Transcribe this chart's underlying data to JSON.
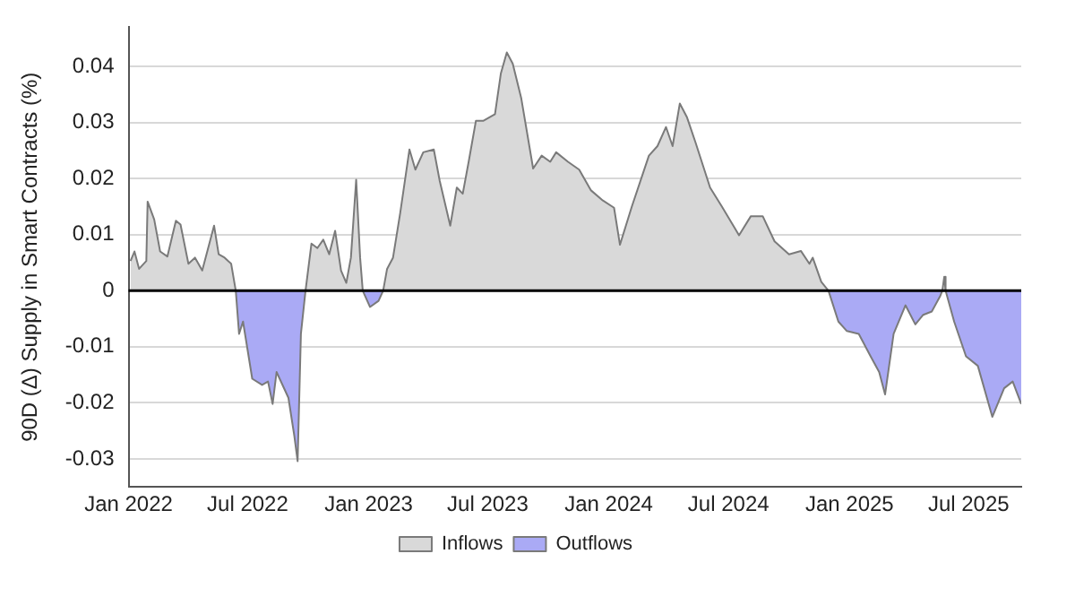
{
  "chart_data": {
    "type": "area",
    "ylabel": "90D (Δ) Supply in Smart Contracts (%)",
    "xlim": [
      "2022-01-01",
      "2025-09-19"
    ],
    "xticks": [
      {
        "value": "2022-01",
        "label": "Jan 2022"
      },
      {
        "value": "2022-07",
        "label": "Jul 2022"
      },
      {
        "value": "2023-01",
        "label": "Jan 2023"
      },
      {
        "value": "2023-07",
        "label": "Jul 2023"
      },
      {
        "value": "2024-01",
        "label": "Jan 2024"
      },
      {
        "value": "2024-07",
        "label": "Jul 2024"
      },
      {
        "value": "2025-01",
        "label": "Jan 2025"
      },
      {
        "value": "2025-07",
        "label": "Jul 2025"
      }
    ],
    "ylim": [
      -0.035,
      0.047
    ],
    "yticks": [
      -0.03,
      -0.02,
      -0.01,
      0,
      0.01,
      0.02,
      0.03,
      0.04
    ],
    "grid": "y",
    "legend": "bottom",
    "ref_lines": [
      {
        "axis": "y",
        "value": 0,
        "color": "#000000"
      }
    ],
    "series": [
      {
        "name": "Inflows",
        "color": "#d9d9d9",
        "x": [
          "2022-01-04",
          "2022-01-10",
          "2022-01-17",
          "2022-01-28",
          "2022-01-30",
          "2022-02-09",
          "2022-02-18",
          "2022-03-01",
          "2022-03-14",
          "2022-03-21",
          "2022-04-02",
          "2022-04-12",
          "2022-04-23",
          "2022-05-11",
          "2022-05-18",
          "2022-05-27",
          "2022-06-06",
          "2022-06-13",
          "2022-09-27",
          "2022-10-06",
          "2022-10-15",
          "2022-10-24",
          "2022-11-02",
          "2022-11-11",
          "2022-11-20",
          "2022-11-28",
          "2022-12-05",
          "2022-12-13",
          "2022-12-19",
          "2022-12-23",
          "2023-01-23",
          "2023-01-29",
          "2023-02-07",
          "2023-02-18",
          "2023-03-04",
          "2023-03-13",
          "2023-03-25",
          "2023-04-10",
          "2023-04-19",
          "2023-05-05",
          "2023-05-15",
          "2023-05-24",
          "2023-06-02",
          "2023-06-13",
          "2023-06-24",
          "2023-07-12",
          "2023-07-21",
          "2023-07-30",
          "2023-08-08",
          "2023-08-21",
          "2023-09-08",
          "2023-09-21",
          "2023-10-04",
          "2023-10-13",
          "2023-10-31",
          "2023-11-17",
          "2023-12-05",
          "2023-12-23",
          "2024-01-09",
          "2024-01-18",
          "2024-02-05",
          "2024-03-02",
          "2024-03-15",
          "2024-03-28",
          "2024-04-07",
          "2024-04-18",
          "2024-04-29",
          "2024-05-12",
          "2024-06-03",
          "2024-06-21",
          "2024-07-17",
          "2024-08-04",
          "2024-08-22",
          "2024-09-09",
          "2024-10-01",
          "2024-10-19",
          "2024-11-01",
          "2024-11-06",
          "2024-11-19",
          "2024-11-30",
          "2025-05-22",
          "2025-05-25",
          "2025-05-27"
        ],
        "values": [
          0.0053,
          0.007,
          0.0039,
          0.0053,
          0.0159,
          0.0127,
          0.007,
          0.0061,
          0.0125,
          0.0118,
          0.0048,
          0.0059,
          0.0036,
          0.0116,
          0.0065,
          0.0059,
          0.0048,
          0,
          0,
          0.0084,
          0.0076,
          0.0091,
          0.0065,
          0.0107,
          0.0036,
          0.0014,
          0.0059,
          0.0198,
          0.0059,
          0,
          0,
          0.0039,
          0.0059,
          0.0139,
          0.0252,
          0.0216,
          0.0247,
          0.0252,
          0.0196,
          0.0116,
          0.0184,
          0.0173,
          0.023,
          0.0303,
          0.0303,
          0.0315,
          0.0388,
          0.0425,
          0.0405,
          0.0343,
          0.0218,
          0.0241,
          0.023,
          0.0247,
          0.023,
          0.0216,
          0.0179,
          0.0161,
          0.0148,
          0.0082,
          0.015,
          0.0241,
          0.0258,
          0.0292,
          0.0258,
          0.0334,
          0.0309,
          0.0264,
          0.0184,
          0.015,
          0.0099,
          0.0133,
          0.0133,
          0.0088,
          0.0065,
          0.0071,
          0.0048,
          0.0059,
          0.0016,
          0,
          0,
          0.0025,
          0
        ]
      },
      {
        "name": "Outflows",
        "color": "#aaaaf5",
        "x": [
          "2022-06-13",
          "2022-06-18",
          "2022-06-24",
          "2022-07-08",
          "2022-07-23",
          "2022-08-01",
          "2022-08-08",
          "2022-08-14",
          "2022-09-01",
          "2022-09-10",
          "2022-09-15",
          "2022-09-20",
          "2022-09-27",
          "2022-12-23",
          "2023-01-03",
          "2023-01-16",
          "2023-01-23",
          "2024-11-30",
          "2024-12-15",
          "2024-12-28",
          "2025-01-15",
          "2025-02-02",
          "2025-02-15",
          "2025-02-24",
          "2025-03-09",
          "2025-03-27",
          "2025-04-11",
          "2025-04-23",
          "2025-05-06",
          "2025-05-19",
          "2025-05-22",
          "2025-05-27",
          "2025-06-09",
          "2025-06-27",
          "2025-07-15",
          "2025-08-06",
          "2025-08-24",
          "2025-09-06",
          "2025-09-19"
        ],
        "values": [
          0,
          -0.0077,
          -0.0055,
          -0.0157,
          -0.0168,
          -0.0162,
          -0.0202,
          -0.0145,
          -0.0191,
          -0.0259,
          -0.0304,
          -0.0077,
          0,
          0,
          -0.0029,
          -0.0018,
          0,
          0,
          -0.0055,
          -0.0072,
          -0.0077,
          -0.0117,
          -0.0145,
          -0.0185,
          -0.0077,
          -0.0026,
          -0.006,
          -0.0043,
          -0.0037,
          -0.0009,
          0,
          0,
          -0.0055,
          -0.0117,
          -0.0134,
          -0.0225,
          -0.0174,
          -0.0162,
          -0.0202
        ]
      }
    ]
  }
}
